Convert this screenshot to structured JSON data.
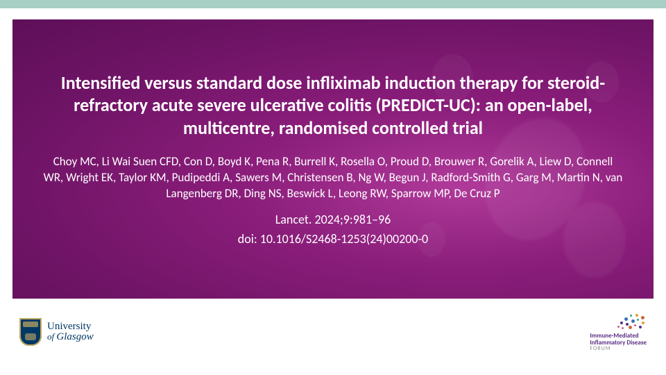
{
  "colors": {
    "top_bar": "#a8cfc3",
    "panel_gradient_inner": "#b03a9a",
    "panel_gradient_outer": "#5e0f58",
    "text": "#ffffff",
    "uni_blue": "#003865",
    "uni_gold": "#c4a961",
    "forum_purple": "#5a2d82"
  },
  "slide": {
    "title": "Intensified versus standard dose infliximab induction therapy for steroid-refractory acute severe ulcerative colitis (PREDICT-UC): an open-label, multicentre, randomised controlled trial",
    "authors": "Choy MC, Li Wai Suen CFD, Con D, Boyd K, Pena R, Burrell K, Rosella O, Proud D, Brouwer R, Gorelik A, Liew D, Connell WR, Wright EK, Taylor KM, Pudipeddi A, Sawers M, Christensen B, Ng W, Begun J, Radford-Smith G, Garg M, Martin N, van Langenberg DR, Ding NS, Beswick L, Leong RW, Sparrow MP, De Cruz P",
    "citation": "Lancet. 2024;9:981–96",
    "doi": "doi: 10.1016/S2468-1253(24)00200-0"
  },
  "footer": {
    "university": {
      "line1": "University",
      "line2_prefix": "of ",
      "line2_main": "Glasgow"
    },
    "forum": {
      "line1": "Immune-Mediated",
      "line2": "Inflammatory Disease",
      "line3": "FORUM",
      "dot_colors": [
        "#c85c8e",
        "#5a2d82",
        "#3b6eb5",
        "#2aa08a",
        "#e0a030",
        "#d06638"
      ]
    }
  }
}
